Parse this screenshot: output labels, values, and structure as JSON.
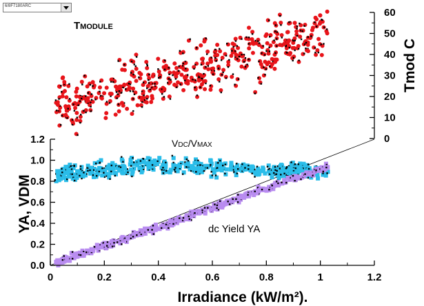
{
  "selector": {
    "value": "6/8F7180ARC"
  },
  "chart_data": {
    "type": "scatter",
    "x_axis": {
      "label": "Irradiance (kW/m²).",
      "range": [
        0,
        1.2
      ],
      "ticks": [
        "0",
        "0.2",
        "0.4",
        "0.6",
        "0.8",
        "1",
        "1.2"
      ]
    },
    "y_axis_left": {
      "label": "YA, VDM",
      "range": [
        0,
        1.2
      ],
      "ticks": [
        "0.0",
        "0.2",
        "0.4",
        "0.6",
        "0.8",
        "1.0",
        "1.2"
      ]
    },
    "y_axis_right": {
      "label": "Tmod C",
      "range": [
        0,
        60
      ],
      "ticks": [
        "0",
        "10",
        "20",
        "30",
        "40",
        "50",
        "60"
      ]
    },
    "annotations": {
      "tmodule": {
        "first": "T",
        "rest": "MODULE"
      },
      "vdc": {
        "v1": "V",
        "s1": "DC",
        "sep": "/V",
        "s2": "MAX"
      },
      "yield": "dc Yield YA"
    },
    "reference_line": {
      "from": [
        0,
        0
      ],
      "to": [
        1.2,
        1.2
      ]
    },
    "series": [
      {
        "name": "TMODULE",
        "axis": "right",
        "color": "#e8141a",
        "marker": "circle",
        "trend": {
          "start": [
            0.02,
            14
          ],
          "end": [
            1.03,
            51
          ],
          "spread": 6
        },
        "n": 430
      },
      {
        "name": "VDC/VMAX",
        "axis": "left",
        "color": "#2bbde9",
        "marker": "square",
        "trend": {
          "start": [
            0.02,
            0.87
          ],
          "peak_x": 0.35,
          "peak": 0.95,
          "end": [
            1.03,
            0.89
          ],
          "spread": 0.035
        },
        "n": 420
      },
      {
        "name": "dc Yield YA",
        "axis": "left",
        "color": "#b98cf0",
        "marker": "square",
        "trend": {
          "start": [
            0.02,
            0.02
          ],
          "end": [
            1.03,
            0.94
          ],
          "spread": 0.015
        },
        "n": 420
      }
    ],
    "colors": {
      "overlay_points": "#000000",
      "axis": "#000000"
    }
  }
}
